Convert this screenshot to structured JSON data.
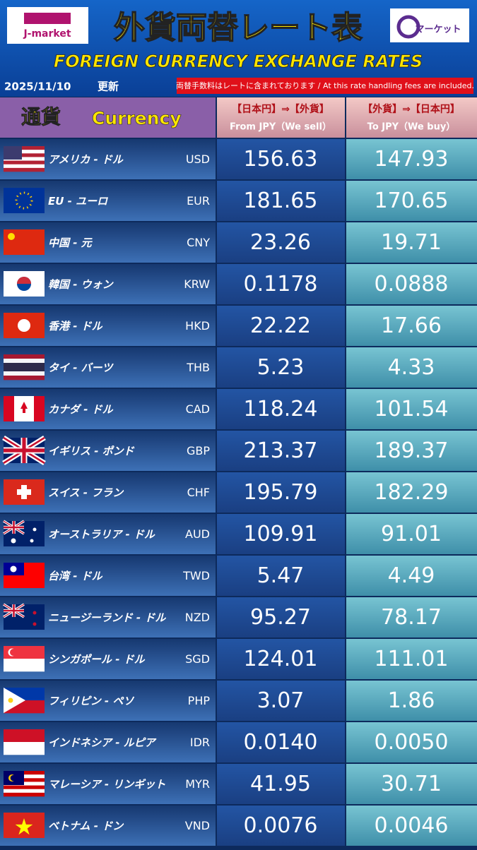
{
  "header": {
    "logo_left": "J-market",
    "title": "外貨両替レート表",
    "subtitle": "FOREIGN CURRENCY EXCHANGE RATES",
    "logo_right": "マーケット",
    "date": "2025/11/10",
    "date_suffix": "更新",
    "note": "両替手数料はレートに含まれております / At this rate handling fees are included."
  },
  "table": {
    "columns": [
      {
        "ja": "通貨",
        "en": "Currency"
      },
      {
        "ja": "【日本円】⇒【外貨】",
        "en": "From JPY（We sell）"
      },
      {
        "ja": "【外貨】⇒【日本円】",
        "en": "To JPY（We buy）"
      }
    ],
    "rows": [
      [
        "アメリカ - ドル",
        "USD",
        "156.63",
        "147.93"
      ],
      [
        "EU - ユーロ",
        "EUR",
        "181.65",
        "170.65"
      ],
      [
        "中国 - 元",
        "CNY",
        "23.26",
        "19.71"
      ],
      [
        "韓国 - ウォン",
        "KRW",
        "0.1178",
        "0.0888"
      ],
      [
        "香港 - ドル",
        "HKD",
        "22.22",
        "17.66"
      ],
      [
        "タイ - バーツ",
        "THB",
        "5.23",
        "4.33"
      ],
      [
        "カナダ - ドル",
        "CAD",
        "118.24",
        "101.54"
      ],
      [
        "イギリス - ポンド",
        "GBP",
        "213.37",
        "189.37"
      ],
      [
        "スイス - フラン",
        "CHF",
        "195.79",
        "182.29"
      ],
      [
        "オーストラリア - ドル",
        "AUD",
        "109.91",
        "91.01"
      ],
      [
        "台湾 - ドル",
        "TWD",
        "5.47",
        "4.49"
      ],
      [
        "ニュージーランド - ドル",
        "NZD",
        "95.27",
        "78.17"
      ],
      [
        "シンガポール - ドル",
        "SGD",
        "124.01",
        "111.01"
      ],
      [
        "フィリピン - ペソ",
        "PHP",
        "3.07",
        "1.86"
      ],
      [
        "インドネシア - ルピア",
        "IDR",
        "0.0140",
        "0.0050"
      ],
      [
        "マレーシア - リンギット",
        "MYR",
        "41.95",
        "30.71"
      ],
      [
        "ベトナム - ドン",
        "VND",
        "0.0076",
        "0.0046"
      ]
    ]
  }
}
